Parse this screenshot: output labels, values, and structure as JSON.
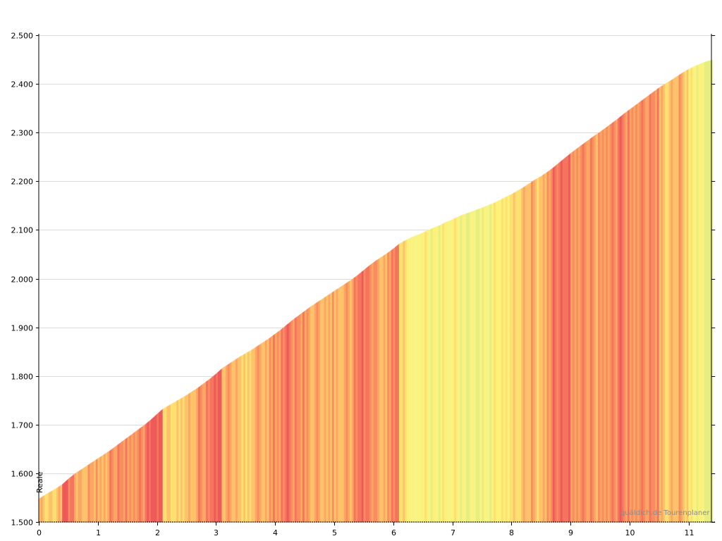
{
  "chart_data": {
    "type": "area",
    "title": "",
    "xlabel": "",
    "ylabel": "",
    "xlim": [
      0,
      11.4
    ],
    "ylim": [
      1500,
      2500
    ],
    "x_ticks": [
      0,
      1,
      2,
      3,
      4,
      5,
      6,
      7,
      8,
      9,
      10,
      11
    ],
    "x_tick_labels": [
      "0",
      "1",
      "2",
      "3",
      "4",
      "5",
      "6",
      "7",
      "8",
      "9",
      "10",
      "11"
    ],
    "y_ticks": [
      1500,
      1600,
      1700,
      1800,
      1900,
      2000,
      2100,
      2200,
      2300,
      2400,
      2500
    ],
    "y_tick_labels": [
      "1.500",
      "1.600",
      "1.700",
      "1.800",
      "1.900",
      "2.000",
      "2.100",
      "2.200",
      "2.300",
      "2.400",
      "2.500"
    ],
    "grid": true,
    "start_label": "Reale",
    "watermark": "quäldich.de Tourenplaner",
    "series": [
      {
        "x": [
          0,
          0.1,
          0.2,
          0.3,
          0.4,
          0.5,
          0.6,
          0.7,
          0.8,
          0.9,
          1.0,
          1.1,
          1.2,
          1.3,
          1.4,
          1.5,
          1.6,
          1.7,
          1.8,
          1.9,
          2.0,
          2.1,
          2.2,
          2.3,
          2.4,
          2.5,
          2.6,
          2.7,
          2.8,
          2.9,
          3.0,
          3.1,
          3.2,
          3.3,
          3.4,
          3.5,
          3.6,
          3.7,
          3.8,
          3.9,
          4.0,
          4.1,
          4.2,
          4.3,
          4.4,
          4.5,
          4.6,
          4.7,
          4.8,
          4.9,
          5.0,
          5.1,
          5.2,
          5.3,
          5.4,
          5.5,
          5.6,
          5.7,
          5.8,
          5.9,
          6.0,
          6.1,
          6.2,
          6.3,
          6.4,
          6.5,
          6.6,
          6.7,
          6.8,
          6.9,
          7.0,
          7.1,
          7.2,
          7.3,
          7.4,
          7.5,
          7.6,
          7.7,
          7.8,
          7.9,
          8.0,
          8.1,
          8.2,
          8.3,
          8.4,
          8.5,
          8.6,
          8.7,
          8.8,
          8.9,
          9.0,
          9.1,
          9.2,
          9.3,
          9.4,
          9.5,
          9.6,
          9.7,
          9.8,
          9.9,
          10.0,
          10.1,
          10.2,
          10.3,
          10.4,
          10.5,
          10.6,
          10.7,
          10.8,
          10.9,
          11.0,
          11.1,
          11.2,
          11.3,
          11.4
        ],
        "values": [
          1547,
          1555,
          1562,
          1569,
          1577,
          1588,
          1598,
          1606,
          1614,
          1622,
          1630,
          1638,
          1646,
          1655,
          1664,
          1673,
          1682,
          1691,
          1700,
          1710,
          1721,
          1732,
          1739,
          1746,
          1753,
          1760,
          1768,
          1776,
          1785,
          1794,
          1804,
          1815,
          1823,
          1831,
          1839,
          1846,
          1853,
          1861,
          1869,
          1877,
          1886,
          1895,
          1905,
          1915,
          1924,
          1933,
          1942,
          1950,
          1958,
          1966,
          1974,
          1982,
          1990,
          1998,
          2007,
          2017,
          2027,
          2036,
          2044,
          2052,
          2061,
          2071,
          2078,
          2084,
          2089,
          2094,
          2100,
          2105,
          2110,
          2116,
          2121,
          2127,
          2132,
          2136,
          2141,
          2145,
          2150,
          2155,
          2161,
          2167,
          2173,
          2180,
          2187,
          2195,
          2203,
          2210,
          2218,
          2227,
          2237,
          2247,
          2257,
          2266,
          2275,
          2284,
          2293,
          2301,
          2310,
          2319,
          2328,
          2338,
          2347,
          2356,
          2365,
          2374,
          2383,
          2392,
          2400,
          2407,
          2415,
          2423,
          2430,
          2436,
          2441,
          2446,
          2449
        ]
      }
    ]
  }
}
